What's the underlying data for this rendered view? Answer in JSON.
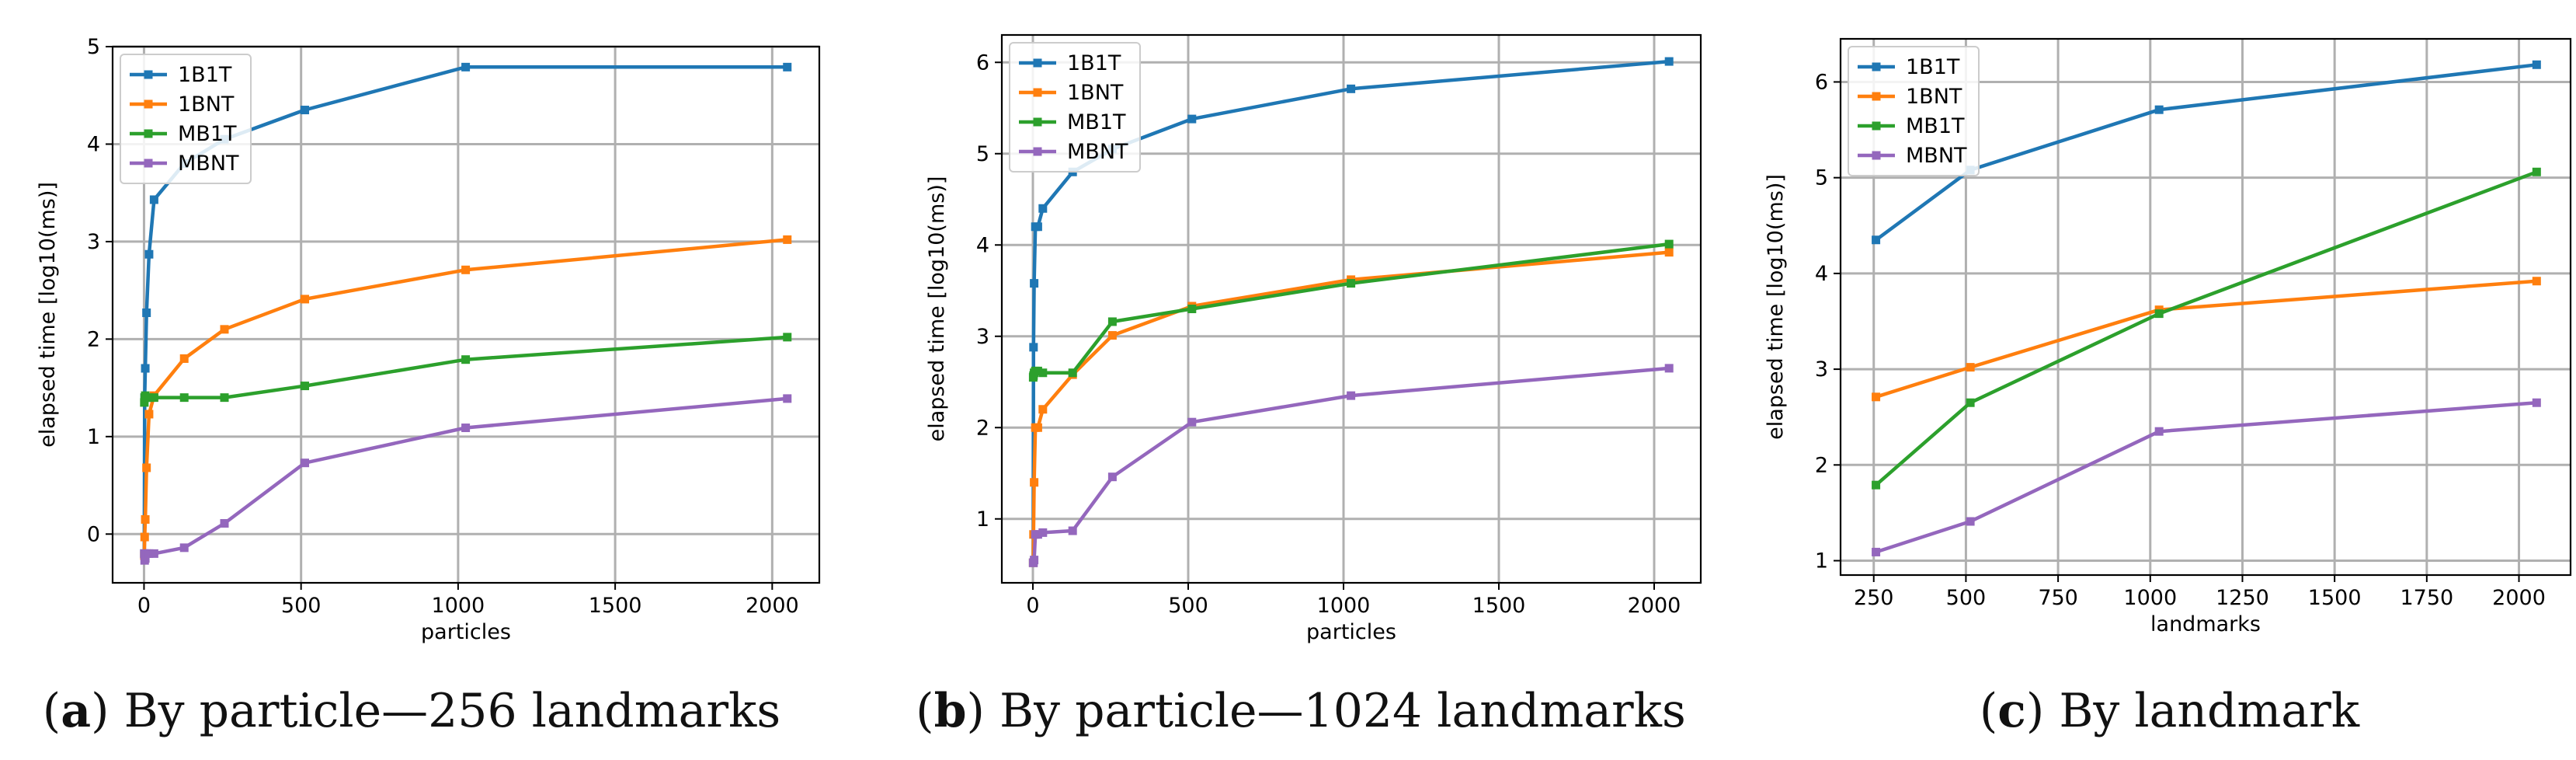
{
  "chart_data": [
    {
      "type": "line",
      "caption_letter": "a",
      "caption_text": "By particle—256 landmarks",
      "xlabel": "particles",
      "ylabel": "elapsed time [log10(ms)]",
      "xlim": [
        -100,
        2150
      ],
      "ylim": [
        -0.5,
        5
      ],
      "xticks": [
        0,
        500,
        1000,
        1500,
        2000
      ],
      "yticks": [
        0,
        1,
        2,
        3,
        4,
        5
      ],
      "grid": true,
      "legend_position": "top-left",
      "series": [
        {
          "name": "1B1T",
          "color": "#1f77b4",
          "x": [
            1,
            2,
            4,
            8,
            16,
            32,
            128,
            256,
            512,
            1024,
            2048
          ],
          "y": [
            -0.2,
            1.4,
            1.7,
            2.27,
            2.87,
            3.43,
            3.8,
            4.05,
            4.35,
            4.79,
            4.79
          ]
        },
        {
          "name": "1BNT",
          "color": "#ff7f0e",
          "x": [
            1,
            2,
            4,
            8,
            16,
            32,
            128,
            256,
            512,
            1024,
            2048
          ],
          "y": [
            -0.22,
            -0.03,
            0.15,
            0.68,
            1.23,
            1.42,
            1.8,
            2.1,
            2.41,
            2.71,
            3.02
          ]
        },
        {
          "name": "MB1T",
          "color": "#2ca02c",
          "x": [
            1,
            2,
            4,
            8,
            16,
            32,
            128,
            256,
            512,
            1024,
            2048
          ],
          "y": [
            1.35,
            1.4,
            1.42,
            1.4,
            1.4,
            1.4,
            1.4,
            1.4,
            1.52,
            1.79,
            2.02
          ]
        },
        {
          "name": "MBNT",
          "color": "#9467bd",
          "x": [
            1,
            2,
            4,
            8,
            16,
            32,
            128,
            256,
            512,
            1024,
            2048
          ],
          "y": [
            -0.2,
            -0.27,
            -0.25,
            -0.2,
            -0.2,
            -0.2,
            -0.14,
            0.11,
            0.73,
            1.09,
            1.39
          ]
        }
      ]
    },
    {
      "type": "line",
      "caption_letter": "b",
      "caption_text": "By particle—1024 landmarks",
      "xlabel": "particles",
      "ylabel": "elapsed time [log10(ms)]",
      "xlim": [
        -100,
        2150
      ],
      "ylim": [
        0.3,
        6.3
      ],
      "xticks": [
        0,
        500,
        1000,
        1500,
        2000
      ],
      "yticks": [
        1,
        2,
        3,
        4,
        5,
        6
      ],
      "grid": true,
      "legend_position": "top-left",
      "series": [
        {
          "name": "1B1T",
          "color": "#1f77b4",
          "x": [
            1,
            2,
            4,
            8,
            16,
            32,
            128,
            256,
            512,
            1024,
            2048
          ],
          "y": [
            0.52,
            2.88,
            3.58,
            4.2,
            4.2,
            4.4,
            4.8,
            5.05,
            5.38,
            5.71,
            6.01
          ]
        },
        {
          "name": "1BNT",
          "color": "#ff7f0e",
          "x": [
            1,
            2,
            4,
            8,
            16,
            32,
            128,
            256,
            512,
            1024,
            2048
          ],
          "y": [
            0.52,
            0.83,
            1.4,
            2.0,
            2.0,
            2.2,
            2.58,
            3.01,
            3.33,
            3.62,
            3.92
          ]
        },
        {
          "name": "MB1T",
          "color": "#2ca02c",
          "x": [
            1,
            2,
            4,
            8,
            16,
            32,
            128,
            256,
            512,
            1024,
            2048
          ],
          "y": [
            2.55,
            2.57,
            2.6,
            2.62,
            2.62,
            2.6,
            2.6,
            3.16,
            3.3,
            3.58,
            4.01
          ]
        },
        {
          "name": "MBNT",
          "color": "#9467bd",
          "x": [
            1,
            2,
            4,
            8,
            16,
            32,
            128,
            256,
            512,
            1024,
            2048
          ],
          "y": [
            0.52,
            0.52,
            0.55,
            0.83,
            0.83,
            0.85,
            0.87,
            1.46,
            2.06,
            2.35,
            2.65
          ]
        }
      ]
    },
    {
      "type": "line",
      "caption_letter": "c",
      "caption_text": "By landmark",
      "xlabel": "landmarks",
      "ylabel": "elapsed time [log10(ms)]",
      "xlim": [
        160,
        2140
      ],
      "ylim": [
        0.85,
        6.45
      ],
      "xticks": [
        250,
        500,
        750,
        1000,
        1250,
        1500,
        1750,
        2000
      ],
      "yticks": [
        1,
        2,
        3,
        4,
        5,
        6
      ],
      "grid": true,
      "legend_position": "top-left",
      "series": [
        {
          "name": "1B1T",
          "color": "#1f77b4",
          "x": [
            256,
            512,
            1024,
            2048
          ],
          "y": [
            4.35,
            5.08,
            5.71,
            6.18
          ]
        },
        {
          "name": "1BNT",
          "color": "#ff7f0e",
          "x": [
            256,
            512,
            1024,
            2048
          ],
          "y": [
            2.71,
            3.02,
            3.62,
            3.92
          ]
        },
        {
          "name": "MB1T",
          "color": "#2ca02c",
          "x": [
            256,
            512,
            1024,
            2048
          ],
          "y": [
            1.79,
            2.65,
            3.58,
            5.06
          ]
        },
        {
          "name": "MBNT",
          "color": "#9467bd",
          "x": [
            256,
            512,
            1024,
            2048
          ],
          "y": [
            1.09,
            1.41,
            2.35,
            2.65
          ]
        }
      ]
    }
  ]
}
